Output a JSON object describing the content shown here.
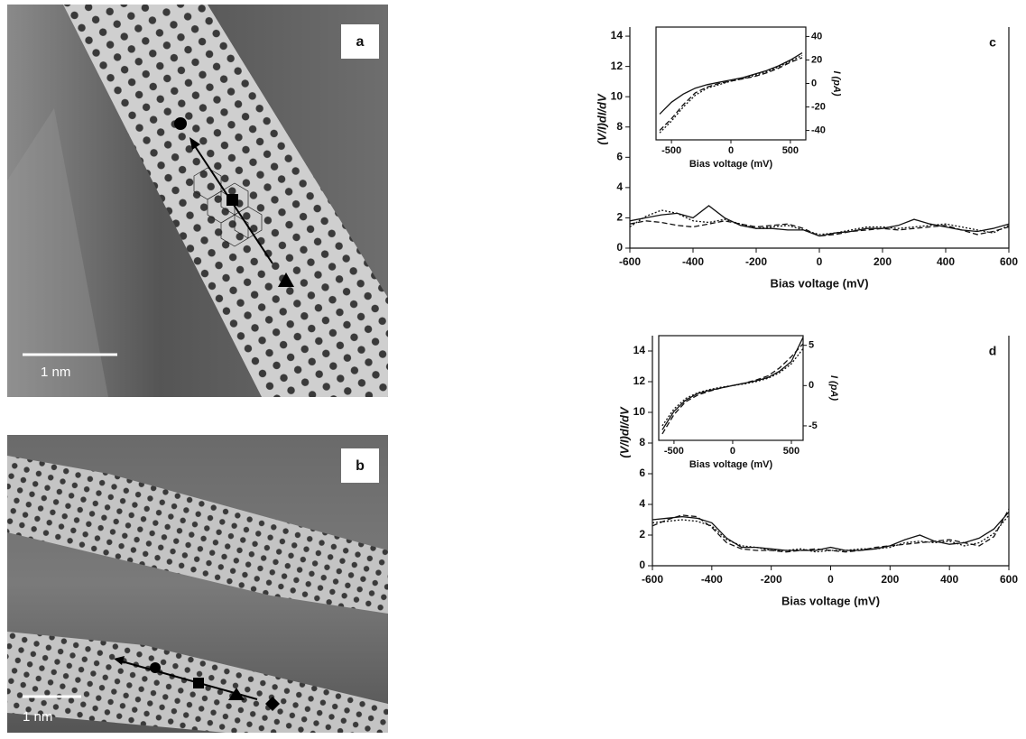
{
  "panels": [
    {
      "label": "a",
      "scale_bar": "1 nm"
    },
    {
      "label": "b",
      "scale_bar": "1 nm"
    }
  ],
  "chart_data": [
    {
      "type": "line",
      "panel_label": "c",
      "xlabel": "Bias voltage (mV)",
      "ylabel": "(V/I)dI/dV",
      "x": [
        -600,
        -550,
        -500,
        -450,
        -400,
        -350,
        -300,
        -250,
        -200,
        -150,
        -100,
        -50,
        0,
        50,
        100,
        150,
        200,
        250,
        300,
        350,
        400,
        450,
        500,
        550,
        600
      ],
      "xlim": [
        -600,
        600
      ],
      "xticks": [
        -600,
        -400,
        -200,
        0,
        200,
        400,
        600
      ],
      "ylim": [
        0,
        14.6
      ],
      "yticks": [
        0,
        2,
        4,
        6,
        8,
        10,
        12,
        14
      ],
      "series": [
        {
          "color": "#111111",
          "style": "solid",
          "values": [
            1.8,
            2.0,
            2.2,
            2.3,
            2.0,
            2.8,
            2.0,
            1.5,
            1.3,
            1.3,
            1.2,
            1.2,
            0.8,
            1.0,
            1.1,
            1.3,
            1.3,
            1.5,
            1.9,
            1.6,
            1.4,
            1.2,
            1.1,
            1.3,
            1.6
          ]
        },
        {
          "color": "#111111",
          "style": "dotted",
          "values": [
            1.4,
            2.1,
            2.5,
            2.3,
            1.8,
            1.7,
            1.9,
            1.6,
            1.3,
            1.4,
            1.5,
            1.2,
            0.9,
            1.0,
            1.2,
            1.4,
            1.4,
            1.3,
            1.4,
            1.5,
            1.6,
            1.4,
            1.2,
            1.0,
            1.5
          ]
        },
        {
          "color": "#111111",
          "style": "dashed",
          "values": [
            1.6,
            1.8,
            1.7,
            1.5,
            1.4,
            1.6,
            1.8,
            1.6,
            1.4,
            1.5,
            1.6,
            1.3,
            0.8,
            0.9,
            1.1,
            1.2,
            1.3,
            1.2,
            1.3,
            1.4,
            1.5,
            1.2,
            0.9,
            1.1,
            1.4
          ]
        }
      ]
    },
    {
      "type": "inset",
      "xlabel": "Bias voltage (mV)",
      "y2label": "I (pA)",
      "x": [
        -600,
        -500,
        -400,
        -300,
        -200,
        -100,
        0,
        100,
        200,
        300,
        400,
        500,
        600
      ],
      "xlim": [
        -630,
        630
      ],
      "xticks": [
        -500,
        0,
        500
      ],
      "y2lim": [
        -48,
        48
      ],
      "y2ticks": [
        -40,
        -20,
        0,
        20,
        40
      ],
      "series": [
        {
          "color": "#111111",
          "style": "solid",
          "axis": "y2",
          "values": [
            -26,
            -16,
            -9,
            -4,
            -1,
            1,
            3,
            5,
            8,
            11,
            15,
            20,
            26
          ]
        },
        {
          "color": "#111111",
          "style": "dashed",
          "axis": "y2",
          "values": [
            -40,
            -30,
            -18,
            -8,
            -3,
            0,
            2,
            4,
            6,
            9,
            13,
            18,
            22
          ]
        },
        {
          "color": "#111111",
          "style": "dotted",
          "axis": "y2",
          "values": [
            -42,
            -32,
            -20,
            -10,
            -4,
            -1,
            2,
            4,
            7,
            10,
            14,
            19,
            24
          ]
        }
      ]
    },
    {
      "type": "line",
      "panel_label": "d",
      "xlabel": "Bias voltage (mV)",
      "ylabel": "(V/I)dI/dV",
      "x": [
        -600,
        -550,
        -500,
        -450,
        -400,
        -350,
        -300,
        -250,
        -200,
        -150,
        -100,
        -50,
        0,
        50,
        100,
        150,
        200,
        250,
        300,
        350,
        400,
        450,
        500,
        550,
        600
      ],
      "xlim": [
        -600,
        600
      ],
      "xticks": [
        -600,
        -400,
        -200,
        0,
        200,
        400,
        600
      ],
      "ylim": [
        0,
        15
      ],
      "yticks": [
        0,
        2,
        4,
        6,
        8,
        10,
        12,
        14
      ],
      "series": [
        {
          "color": "#111111",
          "style": "solid",
          "values": [
            3.0,
            3.1,
            3.2,
            3.1,
            2.8,
            1.8,
            1.2,
            1.2,
            1.1,
            1.0,
            1.0,
            1.0,
            1.2,
            1.0,
            1.0,
            1.1,
            1.3,
            1.7,
            2.0,
            1.6,
            1.4,
            1.5,
            1.8,
            2.4,
            3.5
          ]
        },
        {
          "color": "#111111",
          "style": "dashed",
          "values": [
            2.6,
            3.0,
            3.3,
            3.2,
            2.5,
            1.5,
            1.1,
            1.0,
            1.0,
            0.9,
            1.0,
            1.1,
            1.0,
            0.9,
            1.0,
            1.2,
            1.3,
            1.4,
            1.5,
            1.6,
            1.7,
            1.5,
            1.3,
            1.9,
            3.7
          ]
        },
        {
          "color": "#111111",
          "style": "dotted",
          "values": [
            2.8,
            2.9,
            3.0,
            2.9,
            2.6,
            1.7,
            1.3,
            1.2,
            1.0,
            1.0,
            1.1,
            0.9,
            1.0,
            1.0,
            1.1,
            1.1,
            1.2,
            1.5,
            1.6,
            1.5,
            1.6,
            1.3,
            1.5,
            2.1,
            3.3
          ]
        }
      ]
    },
    {
      "type": "inset",
      "xlabel": "Bias voltage (mV)",
      "y2label": "I (pA)",
      "x": [
        -600,
        -500,
        -400,
        -300,
        -200,
        -100,
        0,
        100,
        200,
        300,
        400,
        500,
        600
      ],
      "xlim": [
        -630,
        600
      ],
      "xticks": [
        -500,
        0,
        500
      ],
      "y2lim": [
        -6.8,
        6.2
      ],
      "y2ticks": [
        -5,
        0,
        5
      ],
      "series": [
        {
          "color": "#111111",
          "style": "solid",
          "axis": "y2",
          "values": [
            -5.5,
            -3.2,
            -1.8,
            -1.0,
            -0.6,
            -0.3,
            0,
            0.3,
            0.6,
            1.0,
            1.8,
            3.0,
            6.0
          ]
        },
        {
          "color": "#111111",
          "style": "dashed",
          "axis": "y2",
          "values": [
            -6.0,
            -3.6,
            -2.0,
            -1.2,
            -0.7,
            -0.3,
            0,
            0.3,
            0.7,
            1.2,
            2.2,
            3.6,
            5.2
          ]
        },
        {
          "color": "#111111",
          "style": "dotted",
          "axis": "y2",
          "values": [
            -5.0,
            -2.9,
            -1.6,
            -0.9,
            -0.5,
            -0.2,
            0,
            0.2,
            0.5,
            0.9,
            1.6,
            2.7,
            4.6
          ]
        }
      ]
    }
  ]
}
